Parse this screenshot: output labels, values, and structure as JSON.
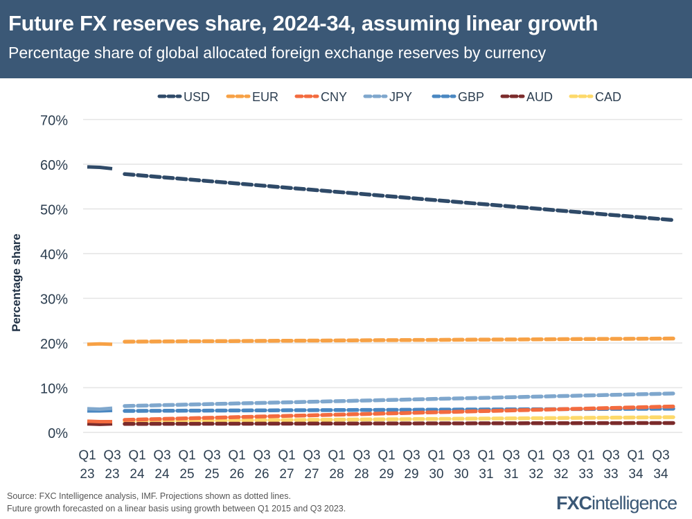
{
  "header": {
    "title": "Future FX reserves share, 2024-34, assuming linear growth",
    "subtitle": "Percentage share of global allocated foreign exchange reserves by currency"
  },
  "footer": {
    "line1": "Source: FXC Intelligence analysis, IMF. Projections shown as dotted lines.",
    "line2": "Future growth forecasted on a linear basis using  growth between Q1 2015 and Q3 2023.",
    "logo": "FXCintelligence"
  },
  "chart_data": {
    "type": "line",
    "title": "Future FX reserves share, 2024-34, assuming linear growth",
    "ylabel": "Percentage share",
    "xlabel": "",
    "ylim": [
      0,
      70
    ],
    "yticks": [
      "0%",
      "10%",
      "20%",
      "30%",
      "40%",
      "50%",
      "60%",
      "70%"
    ],
    "grid": true,
    "legend": "top",
    "x_start": "Q1 2023",
    "x_end": "Q4 2034",
    "xtick_labels": [
      [
        "Q1",
        "23"
      ],
      [
        "Q3",
        "23"
      ],
      [
        "Q1",
        "24"
      ],
      [
        "Q3",
        "24"
      ],
      [
        "Q1",
        "25"
      ],
      [
        "Q3",
        "25"
      ],
      [
        "Q1",
        "26"
      ],
      [
        "Q3",
        "26"
      ],
      [
        "Q1",
        "27"
      ],
      [
        "Q3",
        "27"
      ],
      [
        "Q1",
        "28"
      ],
      [
        "Q3",
        "28"
      ],
      [
        "Q1",
        "29"
      ],
      [
        "Q3",
        "29"
      ],
      [
        "Q1",
        "30"
      ],
      [
        "Q3",
        "30"
      ],
      [
        "Q1",
        "31"
      ],
      [
        "Q3",
        "31"
      ],
      [
        "Q1",
        "32"
      ],
      [
        "Q3",
        "32"
      ],
      [
        "Q1",
        "33"
      ],
      [
        "Q3",
        "33"
      ],
      [
        "Q1",
        "34"
      ],
      [
        "Q3",
        "34"
      ]
    ],
    "actual_quarters": [
      "Q1 2023",
      "Q2 2023",
      "Q3 2023"
    ],
    "projection_quarters": [
      "Q4 2023",
      "Q4 2034"
    ],
    "series": [
      {
        "name": "USD",
        "color": "#2f4a68",
        "actual": [
          59.4,
          59.3,
          59.0
        ],
        "projection": [
          57.8,
          47.5
        ]
      },
      {
        "name": "EUR",
        "color": "#f7a145",
        "actual": [
          19.7,
          19.8,
          19.7
        ],
        "projection": [
          20.3,
          21.0
        ]
      },
      {
        "name": "CNY",
        "color": "#f36b3f",
        "actual": [
          2.5,
          2.4,
          2.4
        ],
        "projection": [
          2.8,
          5.8
        ]
      },
      {
        "name": "JPY",
        "color": "#7fa7cd",
        "actual": [
          5.3,
          5.2,
          5.4
        ],
        "projection": [
          5.9,
          8.7
        ]
      },
      {
        "name": "GBP",
        "color": "#4a87c1",
        "actual": [
          4.8,
          4.8,
          4.9
        ],
        "projection": [
          4.8,
          5.3
        ]
      },
      {
        "name": "AUD",
        "color": "#7b2b2b",
        "actual": [
          1.9,
          1.8,
          1.9
        ],
        "projection": [
          1.9,
          2.1
        ]
      },
      {
        "name": "CAD",
        "color": "#fdd96a",
        "actual": [
          2.4,
          2.3,
          2.4
        ],
        "projection": [
          2.5,
          3.4
        ]
      }
    ]
  }
}
